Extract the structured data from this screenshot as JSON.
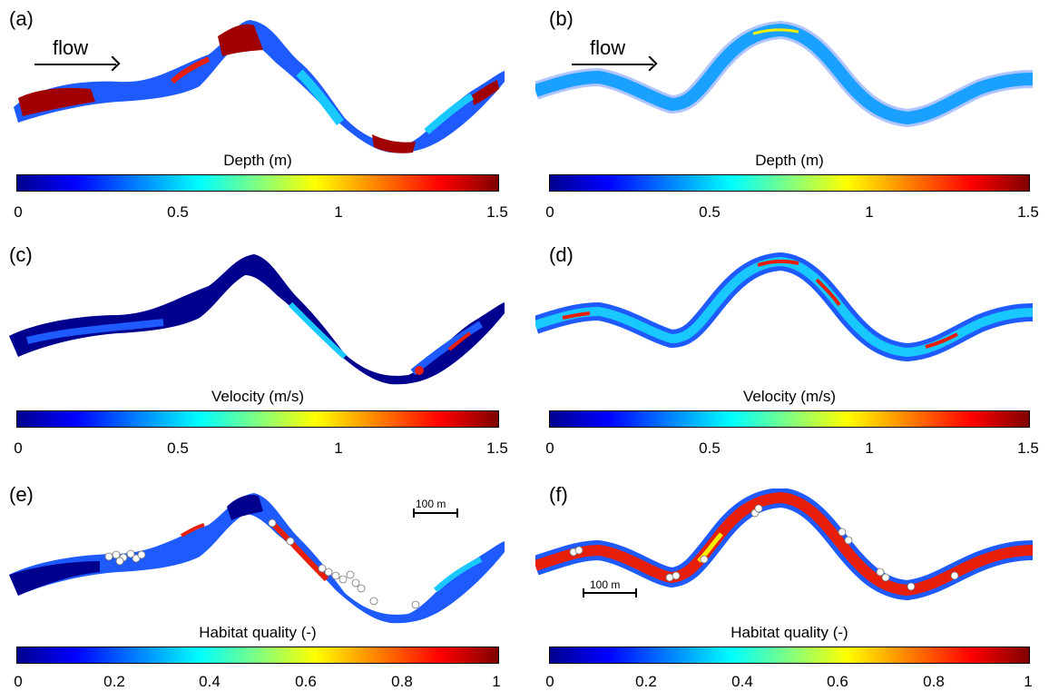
{
  "panels": {
    "a": {
      "label": "(a)",
      "flow": "flow",
      "cb_title": "Depth (m)",
      "ticks": [
        "0",
        "0.5",
        "1",
        "1.5"
      ]
    },
    "b": {
      "label": "(b)",
      "flow": "flow",
      "cb_title": "Depth (m)",
      "ticks": [
        "0",
        "0.5",
        "1",
        "1.5"
      ]
    },
    "c": {
      "label": "(c)",
      "cb_title": "Velocity (m/s)",
      "ticks": [
        "0",
        "0.5",
        "1",
        "1.5"
      ]
    },
    "d": {
      "label": "(d)",
      "cb_title": "Velocity (m/s)",
      "ticks": [
        "0",
        "0.5",
        "1",
        "1.5"
      ]
    },
    "e": {
      "label": "(e)",
      "cb_title": "Habitat quality (-)",
      "ticks": [
        "0",
        "0.2",
        "0.4",
        "0.6",
        "0.8",
        "1"
      ],
      "scale": "100 m"
    },
    "f": {
      "label": "(f)",
      "cb_title": "Habitat quality (-)",
      "ticks": [
        "0",
        "0.2",
        "0.4",
        "0.6",
        "0.8",
        "1"
      ],
      "scale": "100 m"
    }
  },
  "colors": {
    "deep_blue": "#00008f",
    "blue": "#1e5aff",
    "cyan": "#19c8ff",
    "yellow": "#f5f000",
    "red": "#e61e0a",
    "dark_red": "#a00000"
  }
}
